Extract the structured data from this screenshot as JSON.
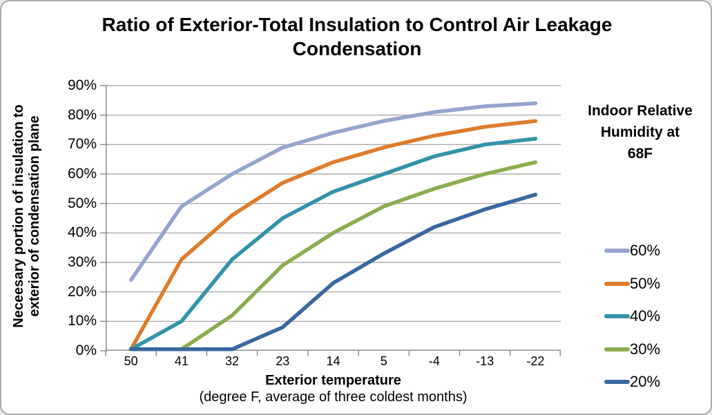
{
  "title": "Ratio of Exterior-Total Insulation to Control Air Leakage Condensation",
  "y_axis": {
    "title_line1": "Neceesary portion of insulation to",
    "title_line2": "exterior of condensation plane",
    "ticks": [
      "90%",
      "80%",
      "70%",
      "60%",
      "50%",
      "40%",
      "30%",
      "20%",
      "10%",
      "0%"
    ]
  },
  "x_axis": {
    "title": "Exterior temperature",
    "subtitle": "(degree F, average of three coldest months)",
    "ticks": [
      "50",
      "41",
      "32",
      "23",
      "14",
      "5",
      "-4",
      "-13",
      "-22"
    ]
  },
  "legend": {
    "title_lines": [
      "Indoor Relative",
      "Humidity at",
      "68F"
    ]
  },
  "chart_data": {
    "type": "line",
    "title": "Ratio of Exterior-Total Insulation to Control Air Leakage Condensation",
    "xlabel": "Exterior temperature (degree F, average of three coldest months)",
    "ylabel": "Neceesary portion of insulation to exterior of condensation plane",
    "categories": [
      50,
      41,
      32,
      23,
      14,
      5,
      -4,
      -13,
      -22
    ],
    "series": [
      {
        "name": "60%",
        "color": "#95A4CF",
        "values": [
          24,
          49,
          60,
          69,
          74,
          78,
          81,
          83,
          84
        ]
      },
      {
        "name": "50%",
        "color": "#DD7C2C",
        "values": [
          0,
          31,
          46,
          57,
          64,
          69,
          73,
          76,
          78
        ]
      },
      {
        "name": "40%",
        "color": "#3392AB",
        "values": [
          0,
          10,
          31,
          45,
          54,
          60,
          66,
          70,
          72
        ]
      },
      {
        "name": "30%",
        "color": "#8BAC4F",
        "values": [
          0,
          0,
          12,
          29,
          40,
          49,
          55,
          60,
          64
        ]
      },
      {
        "name": "20%",
        "color": "#3A67A0",
        "values": [
          0,
          0,
          0,
          8,
          23,
          33,
          42,
          48,
          53
        ]
      }
    ],
    "ylim": [
      0,
      90
    ],
    "y_tick_step": 10,
    "y_tick_format": "percent",
    "grid": true,
    "legend_position": "right",
    "legend_title": "Indoor Relative Humidity at 68F"
  },
  "colors": {
    "background": "#FFFFFF",
    "frame_border": "#A9A9A9",
    "gridline": "#9C9C9C",
    "axis": "#8C8C8C",
    "text": "#000000"
  }
}
